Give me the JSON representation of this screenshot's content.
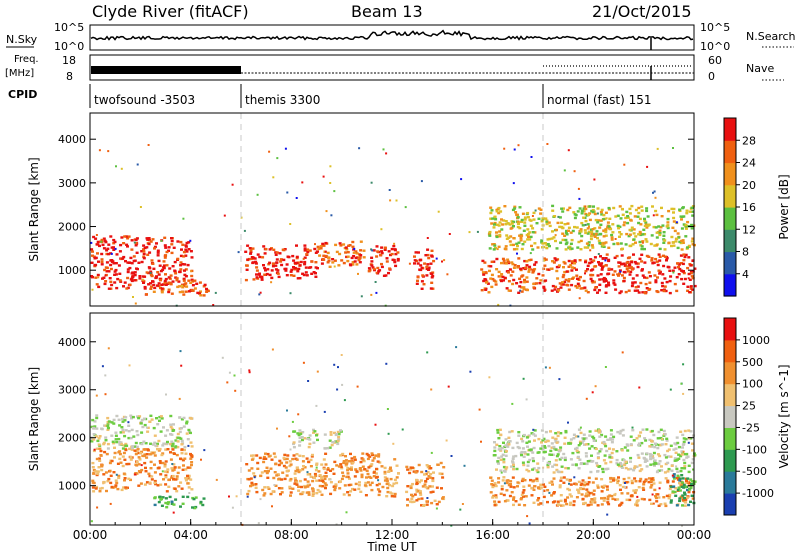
{
  "header": {
    "station": "Clyde River (fitACF)",
    "beam": "Beam 13",
    "date": "21/Oct/2015"
  },
  "strips": {
    "nsky_label": "N.Sky",
    "nsky_ticks": [
      "10^5",
      "10^0"
    ],
    "nsearch_label": "N.Search",
    "freq_label": "Freq.",
    "freq_unit": "[MHz]",
    "freq_ticks": [
      "18",
      "8"
    ],
    "nave_label": "Nave",
    "nave_ticks": [
      "60",
      "0"
    ],
    "cpid_label": "CPID",
    "modes": [
      {
        "name": "twofsound  -3503",
        "start_hour": 0
      },
      {
        "name": "themis 3300",
        "start_hour": 6
      },
      {
        "name": "normal (fast) 151",
        "start_hour": 18
      }
    ]
  },
  "chart_data": [
    {
      "type": "heatmap",
      "name": "power",
      "ylabel": "Slant Range [km]",
      "y_ticks": [
        "1000",
        "2000",
        "3000",
        "4000"
      ],
      "ylim": [
        180,
        4600
      ],
      "colorbar_label": "Power [dB]",
      "colorbar_ticks": [
        "4",
        "8",
        "12",
        "16",
        "20",
        "24",
        "28"
      ],
      "colors": [
        "#1010ee",
        "#2a5aa8",
        "#3c8a6a",
        "#5cc040",
        "#ddc028",
        "#f0901c",
        "#f06010",
        "#e81010"
      ],
      "regions": [
        {
          "t0": 0.0,
          "t1": 4.0,
          "r0": 600,
          "r1": 1800,
          "level": 7
        },
        {
          "t0": 2.0,
          "t1": 4.7,
          "r0": 450,
          "r1": 800,
          "level": 6
        },
        {
          "t0": 6.1,
          "t1": 9.0,
          "r0": 800,
          "r1": 1600,
          "level": 7
        },
        {
          "t0": 9.0,
          "t1": 11.0,
          "r0": 1100,
          "r1": 1700,
          "level": 6
        },
        {
          "t0": 11.0,
          "t1": 12.2,
          "r0": 900,
          "r1": 1600,
          "level": 7
        },
        {
          "t0": 12.8,
          "t1": 13.6,
          "r0": 500,
          "r1": 1500,
          "level": 7
        },
        {
          "t0": 15.5,
          "t1": 20.0,
          "r0": 500,
          "r1": 1300,
          "level": 6
        },
        {
          "t0": 20.0,
          "t1": 24.0,
          "r0": 500,
          "r1": 1400,
          "level": 7
        },
        {
          "t0": 15.8,
          "t1": 24.0,
          "r0": 1500,
          "r1": 2500,
          "level": 4
        }
      ]
    },
    {
      "type": "heatmap",
      "name": "velocity",
      "ylabel": "Slant Range [km]",
      "y_ticks": [
        "1000",
        "2000",
        "3000",
        "4000"
      ],
      "ylim": [
        180,
        4600
      ],
      "colorbar_label": "Velocity [m s^-1]",
      "colorbar_ticks": [
        "1000",
        "500",
        "100",
        "25",
        "-25",
        "-100",
        "-500",
        "-1000"
      ],
      "colors": [
        "#1a3fb0",
        "#2a7a9a",
        "#2e9a50",
        "#6ccc40",
        "#c8c8c0",
        "#f0c070",
        "#f09030",
        "#f06010",
        "#e81010"
      ],
      "regions": [
        {
          "t0": 0.0,
          "t1": 4.0,
          "r0": 900,
          "r1": 1800,
          "level": 6
        },
        {
          "t0": 0.0,
          "t1": 4.0,
          "r0": 1800,
          "r1": 2500,
          "level": 4
        },
        {
          "t0": 2.5,
          "t1": 4.5,
          "r0": 550,
          "r1": 800,
          "level": 2
        },
        {
          "t0": 6.1,
          "t1": 12.2,
          "r0": 800,
          "r1": 1700,
          "level": 6
        },
        {
          "t0": 8.0,
          "t1": 10.0,
          "r0": 1800,
          "r1": 2200,
          "level": 4
        },
        {
          "t0": 12.5,
          "t1": 14.0,
          "r0": 600,
          "r1": 1500,
          "level": 6
        },
        {
          "t0": 15.8,
          "t1": 24.0,
          "r0": 600,
          "r1": 1200,
          "level": 6
        },
        {
          "t0": 16.0,
          "t1": 24.0,
          "r0": 1300,
          "r1": 2200,
          "level": 4
        },
        {
          "t0": 23.0,
          "t1": 24.0,
          "r0": 600,
          "r1": 1300,
          "level": 2
        }
      ]
    }
  ],
  "x_axis": {
    "label": "Time UT",
    "ticks": [
      "00:00",
      "04:00",
      "08:00",
      "12:00",
      "16:00",
      "20:00",
      "00:00"
    ],
    "range_hours": [
      0,
      24
    ]
  }
}
